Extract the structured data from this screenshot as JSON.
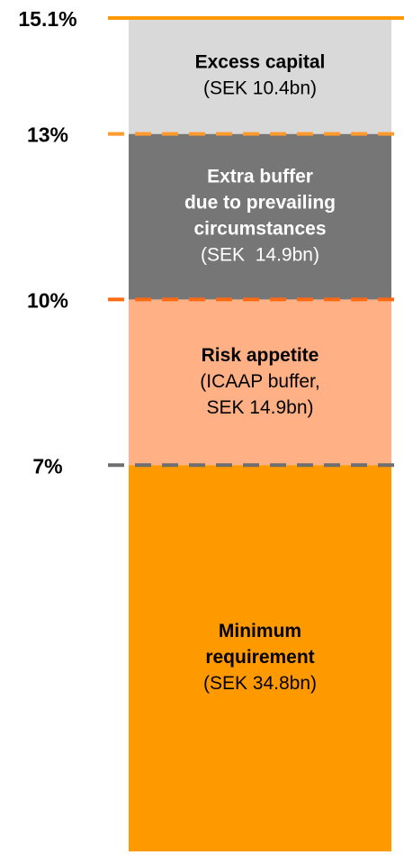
{
  "chart_data": {
    "type": "stacked_bar",
    "categories": [
      null
    ],
    "series": [
      {
        "name": "Minimum requirement",
        "label_lines": [
          "Minimum",
          "requirement"
        ],
        "detail_lines": [
          "(SEK 34.8bn)"
        ],
        "color": "#ff9900",
        "text_color": "#000000",
        "values": [
          7
        ]
      },
      {
        "name": "Risk appetite",
        "label_lines": [
          "Risk appetite"
        ],
        "detail_lines": [
          "(ICAAP buffer,",
          "SEK 14.9bn)"
        ],
        "color": "#ffb084",
        "text_color": "#000000",
        "values": [
          3
        ]
      },
      {
        "name": "Extra buffer due to prevailing circumstances",
        "label_lines": [
          "Extra buffer",
          "due to prevailing",
          "circumstances"
        ],
        "detail_lines": [
          "(SEK  14.9bn)"
        ],
        "color": "#767676",
        "text_color": "#ffffff",
        "values": [
          3
        ]
      },
      {
        "name": "Excess capital",
        "label_lines": [
          "Excess capital"
        ],
        "detail_lines": [
          "(SEK 10.4bn)"
        ],
        "color": "#d9d9d9",
        "text_color": "#000000",
        "values": [
          2.1
        ]
      }
    ],
    "ylim": [
      0,
      15.1
    ],
    "yticks": [
      {
        "value": 7,
        "label": "7%"
      },
      {
        "value": 10,
        "label": "10%"
      },
      {
        "value": 13,
        "label": "13%"
      },
      {
        "value": 15.1,
        "label": "15.1%"
      }
    ],
    "tick_line_colors": [
      "#6e6e6e",
      "#ff6a13",
      "#ff9a2e",
      "#ff9900"
    ],
    "tick_line_dashed": [
      true,
      true,
      true,
      false
    ]
  }
}
